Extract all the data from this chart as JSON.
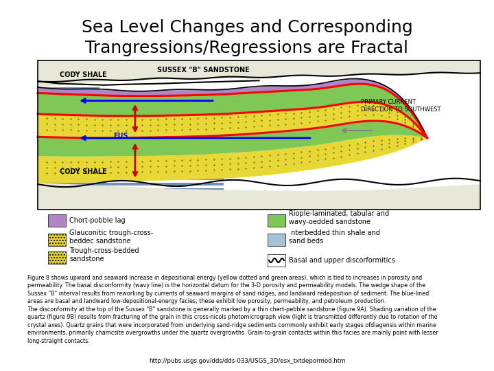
{
  "title_line1": "Sea Level Changes and Corresponding",
  "title_line2": "Trangressions/Regressions are Fractal",
  "title_fontsize": 18,
  "bg_color": "#ffffff",
  "body_text": "Figure 8 shows upward and seaward increase in depositional energy (yellow dotted and green areas), which is tied to increases in porosity and\npermeability. The basal disconformity (wavy line) is the horizontal datum for the 3-D porosity and permeability models. The wedge shape of the\nSussex \"B\" interval results from reworking by currents of seaward margins of sand ridges, and landward redeposition of sediment. The blue-lined\nareas are basal and landward low-depositional-energy facies; these exhibit low porosity, permeability, and petroleum production.\nThe disconformity at the top of the Sussex \"B\" sandstone is generally marked by a thin chert-pebble sandstone (figure 9A). Shading variation of the\nquartz (figure 9B) results from fracturing of the grain in this cross-nicols photomicrograph view (light is transmitted differently due to rotation of the\ncrystal axes). Quartz grains that were incorporated from underlying sand-ridge sediments commonly exhibit early stages ofdiagensis within marine\nenvironments, primarily chamcsite overgrowths under the quartz overgrowths. Grain-to-grain contacts within this facies are mainly point with lesser\nlong-straight contacts.",
  "body_fontsize": 5.8,
  "url_text": "http://pubs.usgs.gov/dds/dds-033/USGS_3D/esx_txtdepormod.htm",
  "url_fontsize": 6.2,
  "purple_color": "#b085c8",
  "green_color": "#80c855",
  "yellow_color": "#e8d835",
  "blue_stripe_color": "#7090b8",
  "shale_color": "#e8e8d8",
  "dot_color": "#7a6020"
}
